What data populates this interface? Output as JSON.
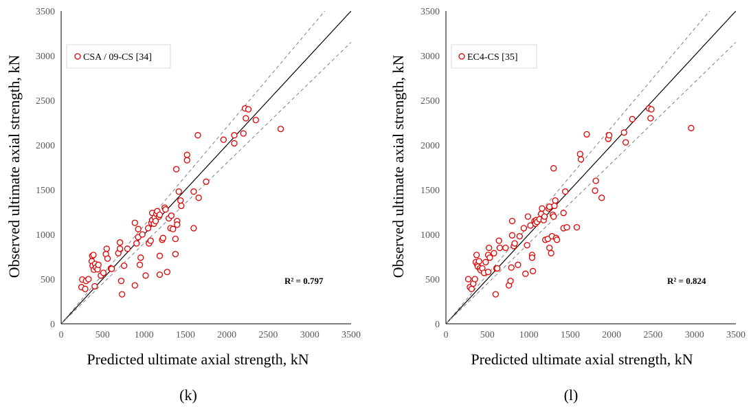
{
  "chart_data": [
    {
      "type": "scatter",
      "xlabel": "Predicted ultimate axial strength, kN",
      "ylabel": "Observed ultimate axial strength, kN",
      "xlim": [
        0,
        3500
      ],
      "ylim": [
        0,
        3500
      ],
      "xticks": [
        "0",
        "500",
        "1000",
        "1500",
        "2000",
        "2500",
        "3000",
        "3500"
      ],
      "yticks": [
        "0",
        "500",
        "1000",
        "1500",
        "2000",
        "2500",
        "3000",
        "3500"
      ],
      "legend_position": "top-left",
      "marker_color": "#e00000",
      "series": [
        {
          "name": "CSA / 09-CS [34]",
          "points": [
            [
              245,
              410
            ],
            [
              255,
              495
            ],
            [
              290,
              390
            ],
            [
              300,
              480
            ],
            [
              330,
              500
            ],
            [
              370,
              700
            ],
            [
              375,
              760
            ],
            [
              380,
              650
            ],
            [
              390,
              770
            ],
            [
              395,
              605
            ],
            [
              405,
              420
            ],
            [
              410,
              670
            ],
            [
              420,
              630
            ],
            [
              440,
              610
            ],
            [
              450,
              660
            ],
            [
              480,
              540
            ],
            [
              510,
              570
            ],
            [
              540,
              780
            ],
            [
              550,
              840
            ],
            [
              560,
              730
            ],
            [
              600,
              620
            ],
            [
              610,
              615
            ],
            [
              690,
              790
            ],
            [
              710,
              840
            ],
            [
              710,
              910
            ],
            [
              725,
              480
            ],
            [
              735,
              330
            ],
            [
              760,
              650
            ],
            [
              800,
              840
            ],
            [
              890,
              1130
            ],
            [
              890,
              430
            ],
            [
              910,
              900
            ],
            [
              930,
              1060
            ],
            [
              930,
              970
            ],
            [
              950,
              660
            ],
            [
              960,
              740
            ],
            [
              980,
              1000
            ],
            [
              1020,
              540
            ],
            [
              1050,
              1070
            ],
            [
              1060,
              900
            ],
            [
              1080,
              930
            ],
            [
              1090,
              1130
            ],
            [
              1100,
              1160
            ],
            [
              1100,
              1240
            ],
            [
              1120,
              1120
            ],
            [
              1130,
              1190
            ],
            [
              1140,
              1150
            ],
            [
              1150,
              1230
            ],
            [
              1160,
              1260
            ],
            [
              1180,
              1200
            ],
            [
              1190,
              1220
            ],
            [
              1190,
              760
            ],
            [
              1190,
              550
            ],
            [
              1220,
              940
            ],
            [
              1230,
              960
            ],
            [
              1250,
              1300
            ],
            [
              1260,
              1280
            ],
            [
              1280,
              580
            ],
            [
              1300,
              1180
            ],
            [
              1320,
              1070
            ],
            [
              1330,
              1210
            ],
            [
              1350,
              1060
            ],
            [
              1380,
              780
            ],
            [
              1380,
              950
            ],
            [
              1390,
              1730
            ],
            [
              1400,
              1150
            ],
            [
              1400,
              1110
            ],
            [
              1420,
              1480
            ],
            [
              1440,
              1380
            ],
            [
              1450,
              1320
            ],
            [
              1520,
              1830
            ],
            [
              1520,
              1890
            ],
            [
              1600,
              1480
            ],
            [
              1600,
              1070
            ],
            [
              1650,
              2110
            ],
            [
              1660,
              1410
            ],
            [
              1750,
              1590
            ],
            [
              1960,
              2060
            ],
            [
              2090,
              2020
            ],
            [
              2090,
              2110
            ],
            [
              2200,
              2130
            ],
            [
              2220,
              2410
            ],
            [
              2230,
              2300
            ],
            [
              2260,
              2400
            ],
            [
              2350,
              2280
            ],
            [
              2650,
              2180
            ]
          ]
        }
      ],
      "annotations": [
        "R² = 0.797"
      ],
      "caption": "(k)"
    },
    {
      "type": "scatter",
      "xlabel": "Predicted ultimate axial strength, kN",
      "ylabel": "Observed ultimate axial strength, kN",
      "xlim": [
        0,
        3500
      ],
      "ylim": [
        0,
        3500
      ],
      "xticks": [
        "0",
        "500",
        "1000",
        "1500",
        "2000",
        "2500",
        "3000",
        "3500"
      ],
      "yticks": [
        "0",
        "500",
        "1000",
        "1500",
        "2000",
        "2500",
        "3000",
        "3500"
      ],
      "legend_position": "top-left",
      "marker_color": "#e00000",
      "series": [
        {
          "name": "EC4-CS [35]",
          "points": [
            [
              270,
              500
            ],
            [
              290,
              410
            ],
            [
              310,
              390
            ],
            [
              330,
              450
            ],
            [
              350,
              500
            ],
            [
              360,
              690
            ],
            [
              370,
              770
            ],
            [
              380,
              660
            ],
            [
              385,
              640
            ],
            [
              400,
              700
            ],
            [
              410,
              620
            ],
            [
              420,
              600
            ],
            [
              440,
              620
            ],
            [
              460,
              570
            ],
            [
              480,
              690
            ],
            [
              510,
              580
            ],
            [
              510,
              770
            ],
            [
              520,
              850
            ],
            [
              530,
              740
            ],
            [
              580,
              790
            ],
            [
              600,
              330
            ],
            [
              610,
              620
            ],
            [
              620,
              620
            ],
            [
              640,
              930
            ],
            [
              650,
              850
            ],
            [
              720,
              850
            ],
            [
              760,
              430
            ],
            [
              780,
              480
            ],
            [
              790,
              630
            ],
            [
              800,
              990
            ],
            [
              800,
              1150
            ],
            [
              820,
              870
            ],
            [
              830,
              900
            ],
            [
              870,
              660
            ],
            [
              890,
              980
            ],
            [
              940,
              1070
            ],
            [
              960,
              560
            ],
            [
              980,
              880
            ],
            [
              990,
              1200
            ],
            [
              1020,
              1100
            ],
            [
              1040,
              770
            ],
            [
              1040,
              740
            ],
            [
              1050,
              590
            ],
            [
              1070,
              1150
            ],
            [
              1080,
              1120
            ],
            [
              1090,
              1160
            ],
            [
              1100,
              1140
            ],
            [
              1130,
              1170
            ],
            [
              1150,
              1230
            ],
            [
              1160,
              1290
            ],
            [
              1180,
              1160
            ],
            [
              1190,
              1200
            ],
            [
              1200,
              940
            ],
            [
              1230,
              950
            ],
            [
              1240,
              1290
            ],
            [
              1250,
              1310
            ],
            [
              1250,
              850
            ],
            [
              1270,
              790
            ],
            [
              1280,
              980
            ],
            [
              1290,
              1220
            ],
            [
              1300,
              1740
            ],
            [
              1300,
              1200
            ],
            [
              1310,
              1320
            ],
            [
              1320,
              1380
            ],
            [
              1330,
              960
            ],
            [
              1340,
              940
            ],
            [
              1420,
              1240
            ],
            [
              1420,
              1070
            ],
            [
              1440,
              1480
            ],
            [
              1460,
              1080
            ],
            [
              1580,
              1080
            ],
            [
              1620,
              1900
            ],
            [
              1630,
              1840
            ],
            [
              1700,
              2120
            ],
            [
              1800,
              1490
            ],
            [
              1810,
              1600
            ],
            [
              1880,
              1410
            ],
            [
              1960,
              2070
            ],
            [
              1970,
              2110
            ],
            [
              2150,
              2140
            ],
            [
              2170,
              2030
            ],
            [
              2250,
              2290
            ],
            [
              2450,
              2410
            ],
            [
              2470,
              2300
            ],
            [
              2480,
              2400
            ],
            [
              2960,
              2190
            ]
          ]
        }
      ],
      "annotations": [
        "R² = 0.824"
      ],
      "caption": "(l)"
    }
  ]
}
